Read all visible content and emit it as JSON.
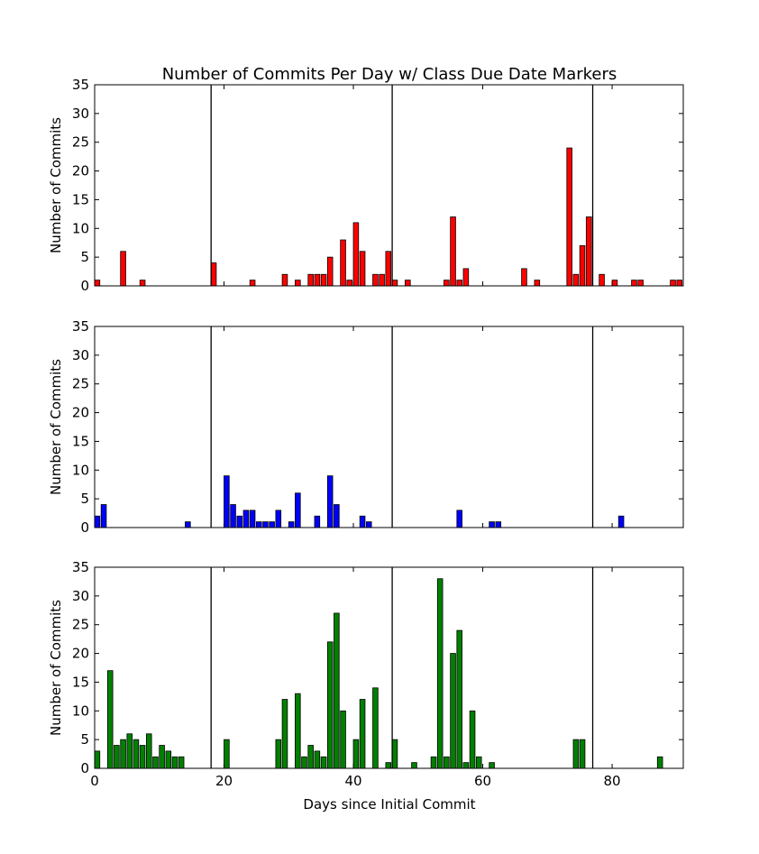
{
  "chart_data": {
    "type": "bar",
    "title": "Number of Commits Per Day w/ Class Due Date Markers",
    "xlabel": "Days since Initial Commit",
    "xlim": [
      0,
      91
    ],
    "xticks": [
      0,
      20,
      40,
      60,
      80
    ],
    "ylim": [
      0,
      35
    ],
    "yticks": [
      0,
      5,
      10,
      15,
      20,
      25,
      30,
      35
    ],
    "due_date_markers": [
      18,
      46,
      77
    ],
    "panels": [
      {
        "ylabel": "Number of Commits",
        "color": "#ff0000",
        "days": [
          0,
          4,
          7,
          18,
          24,
          29,
          31,
          33,
          34,
          35,
          36,
          38,
          39,
          40,
          41,
          43,
          44,
          45,
          46,
          48,
          54,
          55,
          56,
          57,
          66,
          68,
          73,
          74,
          75,
          76,
          78,
          80,
          83,
          84,
          89,
          90
        ],
        "values": [
          1,
          6,
          1,
          4,
          1,
          2,
          1,
          2,
          2,
          2,
          5,
          8,
          1,
          11,
          6,
          2,
          2,
          6,
          1,
          1,
          1,
          12,
          1,
          3,
          3,
          1,
          24,
          2,
          7,
          12,
          2,
          1,
          1,
          1,
          1,
          1
        ]
      },
      {
        "ylabel": "Number of Commits",
        "color": "#0000ff",
        "days": [
          0,
          1,
          14,
          20,
          21,
          22,
          23,
          24,
          25,
          26,
          27,
          28,
          30,
          31,
          34,
          36,
          37,
          41,
          42,
          56,
          61,
          62,
          81
        ],
        "values": [
          2,
          4,
          1,
          9,
          4,
          2,
          3,
          3,
          1,
          1,
          1,
          3,
          1,
          6,
          2,
          9,
          4,
          2,
          1,
          3,
          1,
          1,
          2
        ]
      },
      {
        "ylabel": "Number of Commits",
        "color": "#008000",
        "days": [
          0,
          2,
          3,
          4,
          5,
          6,
          7,
          8,
          9,
          10,
          11,
          12,
          13,
          20,
          28,
          29,
          31,
          32,
          33,
          34,
          35,
          36,
          37,
          38,
          40,
          41,
          43,
          45,
          46,
          49,
          52,
          53,
          54,
          55,
          56,
          57,
          58,
          59,
          61,
          74,
          75,
          87
        ],
        "values": [
          3,
          17,
          4,
          5,
          6,
          5,
          4,
          6,
          2,
          4,
          3,
          2,
          2,
          5,
          5,
          12,
          13,
          2,
          4,
          3,
          2,
          22,
          27,
          10,
          5,
          12,
          14,
          1,
          5,
          1,
          2,
          33,
          2,
          20,
          24,
          1,
          10,
          2,
          1,
          5,
          5,
          2
        ]
      }
    ]
  }
}
